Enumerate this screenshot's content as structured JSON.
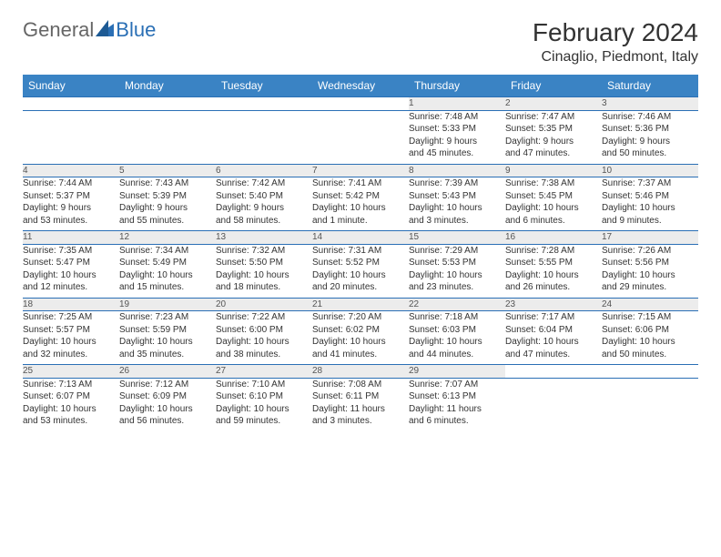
{
  "logo": {
    "part1": "General",
    "part2": "Blue"
  },
  "title": "February 2024",
  "location": "Cinaglio, Piedmont, Italy",
  "colors": {
    "header_bg": "#3a83c4",
    "border": "#2a6fb5",
    "daynum_bg": "#ececec",
    "text": "#333333",
    "logo_blue": "#2a6fb5"
  },
  "day_headers": [
    "Sunday",
    "Monday",
    "Tuesday",
    "Wednesday",
    "Thursday",
    "Friday",
    "Saturday"
  ],
  "weeks": [
    [
      null,
      null,
      null,
      null,
      {
        "n": "1",
        "sunrise": "Sunrise: 7:48 AM",
        "sunset": "Sunset: 5:33 PM",
        "d1": "Daylight: 9 hours",
        "d2": "and 45 minutes."
      },
      {
        "n": "2",
        "sunrise": "Sunrise: 7:47 AM",
        "sunset": "Sunset: 5:35 PM",
        "d1": "Daylight: 9 hours",
        "d2": "and 47 minutes."
      },
      {
        "n": "3",
        "sunrise": "Sunrise: 7:46 AM",
        "sunset": "Sunset: 5:36 PM",
        "d1": "Daylight: 9 hours",
        "d2": "and 50 minutes."
      }
    ],
    [
      {
        "n": "4",
        "sunrise": "Sunrise: 7:44 AM",
        "sunset": "Sunset: 5:37 PM",
        "d1": "Daylight: 9 hours",
        "d2": "and 53 minutes."
      },
      {
        "n": "5",
        "sunrise": "Sunrise: 7:43 AM",
        "sunset": "Sunset: 5:39 PM",
        "d1": "Daylight: 9 hours",
        "d2": "and 55 minutes."
      },
      {
        "n": "6",
        "sunrise": "Sunrise: 7:42 AM",
        "sunset": "Sunset: 5:40 PM",
        "d1": "Daylight: 9 hours",
        "d2": "and 58 minutes."
      },
      {
        "n": "7",
        "sunrise": "Sunrise: 7:41 AM",
        "sunset": "Sunset: 5:42 PM",
        "d1": "Daylight: 10 hours",
        "d2": "and 1 minute."
      },
      {
        "n": "8",
        "sunrise": "Sunrise: 7:39 AM",
        "sunset": "Sunset: 5:43 PM",
        "d1": "Daylight: 10 hours",
        "d2": "and 3 minutes."
      },
      {
        "n": "9",
        "sunrise": "Sunrise: 7:38 AM",
        "sunset": "Sunset: 5:45 PM",
        "d1": "Daylight: 10 hours",
        "d2": "and 6 minutes."
      },
      {
        "n": "10",
        "sunrise": "Sunrise: 7:37 AM",
        "sunset": "Sunset: 5:46 PM",
        "d1": "Daylight: 10 hours",
        "d2": "and 9 minutes."
      }
    ],
    [
      {
        "n": "11",
        "sunrise": "Sunrise: 7:35 AM",
        "sunset": "Sunset: 5:47 PM",
        "d1": "Daylight: 10 hours",
        "d2": "and 12 minutes."
      },
      {
        "n": "12",
        "sunrise": "Sunrise: 7:34 AM",
        "sunset": "Sunset: 5:49 PM",
        "d1": "Daylight: 10 hours",
        "d2": "and 15 minutes."
      },
      {
        "n": "13",
        "sunrise": "Sunrise: 7:32 AM",
        "sunset": "Sunset: 5:50 PM",
        "d1": "Daylight: 10 hours",
        "d2": "and 18 minutes."
      },
      {
        "n": "14",
        "sunrise": "Sunrise: 7:31 AM",
        "sunset": "Sunset: 5:52 PM",
        "d1": "Daylight: 10 hours",
        "d2": "and 20 minutes."
      },
      {
        "n": "15",
        "sunrise": "Sunrise: 7:29 AM",
        "sunset": "Sunset: 5:53 PM",
        "d1": "Daylight: 10 hours",
        "d2": "and 23 minutes."
      },
      {
        "n": "16",
        "sunrise": "Sunrise: 7:28 AM",
        "sunset": "Sunset: 5:55 PM",
        "d1": "Daylight: 10 hours",
        "d2": "and 26 minutes."
      },
      {
        "n": "17",
        "sunrise": "Sunrise: 7:26 AM",
        "sunset": "Sunset: 5:56 PM",
        "d1": "Daylight: 10 hours",
        "d2": "and 29 minutes."
      }
    ],
    [
      {
        "n": "18",
        "sunrise": "Sunrise: 7:25 AM",
        "sunset": "Sunset: 5:57 PM",
        "d1": "Daylight: 10 hours",
        "d2": "and 32 minutes."
      },
      {
        "n": "19",
        "sunrise": "Sunrise: 7:23 AM",
        "sunset": "Sunset: 5:59 PM",
        "d1": "Daylight: 10 hours",
        "d2": "and 35 minutes."
      },
      {
        "n": "20",
        "sunrise": "Sunrise: 7:22 AM",
        "sunset": "Sunset: 6:00 PM",
        "d1": "Daylight: 10 hours",
        "d2": "and 38 minutes."
      },
      {
        "n": "21",
        "sunrise": "Sunrise: 7:20 AM",
        "sunset": "Sunset: 6:02 PM",
        "d1": "Daylight: 10 hours",
        "d2": "and 41 minutes."
      },
      {
        "n": "22",
        "sunrise": "Sunrise: 7:18 AM",
        "sunset": "Sunset: 6:03 PM",
        "d1": "Daylight: 10 hours",
        "d2": "and 44 minutes."
      },
      {
        "n": "23",
        "sunrise": "Sunrise: 7:17 AM",
        "sunset": "Sunset: 6:04 PM",
        "d1": "Daylight: 10 hours",
        "d2": "and 47 minutes."
      },
      {
        "n": "24",
        "sunrise": "Sunrise: 7:15 AM",
        "sunset": "Sunset: 6:06 PM",
        "d1": "Daylight: 10 hours",
        "d2": "and 50 minutes."
      }
    ],
    [
      {
        "n": "25",
        "sunrise": "Sunrise: 7:13 AM",
        "sunset": "Sunset: 6:07 PM",
        "d1": "Daylight: 10 hours",
        "d2": "and 53 minutes."
      },
      {
        "n": "26",
        "sunrise": "Sunrise: 7:12 AM",
        "sunset": "Sunset: 6:09 PM",
        "d1": "Daylight: 10 hours",
        "d2": "and 56 minutes."
      },
      {
        "n": "27",
        "sunrise": "Sunrise: 7:10 AM",
        "sunset": "Sunset: 6:10 PM",
        "d1": "Daylight: 10 hours",
        "d2": "and 59 minutes."
      },
      {
        "n": "28",
        "sunrise": "Sunrise: 7:08 AM",
        "sunset": "Sunset: 6:11 PM",
        "d1": "Daylight: 11 hours",
        "d2": "and 3 minutes."
      },
      {
        "n": "29",
        "sunrise": "Sunrise: 7:07 AM",
        "sunset": "Sunset: 6:13 PM",
        "d1": "Daylight: 11 hours",
        "d2": "and 6 minutes."
      },
      null,
      null
    ]
  ]
}
